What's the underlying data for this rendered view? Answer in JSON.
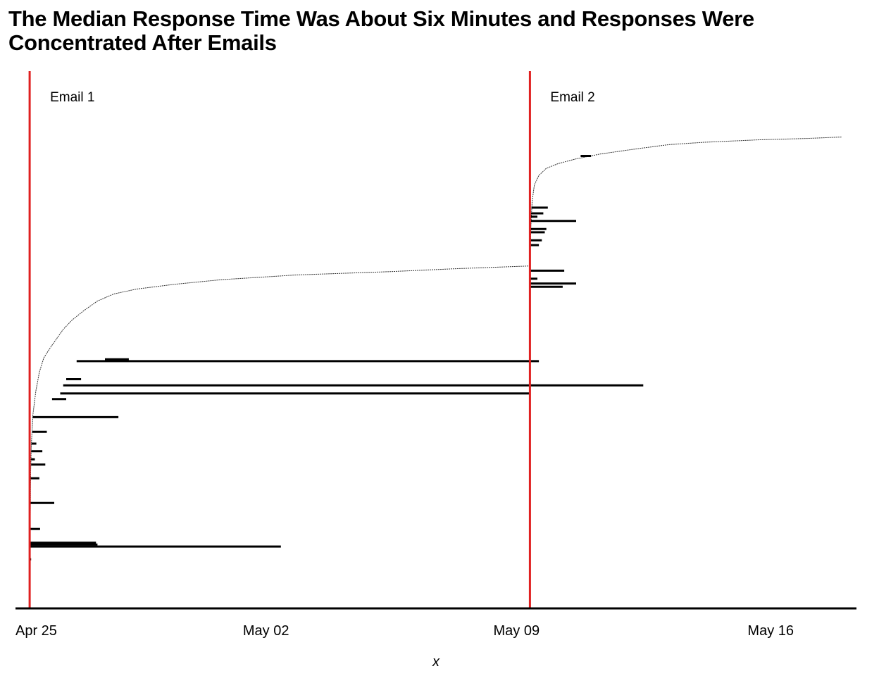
{
  "chart_data": {
    "type": "range_segments",
    "title": "The Median Response Time Was About Six Minutes and Responses Were Concentrated After Emails",
    "xlabel": "x",
    "ylabel": "",
    "x_axis": {
      "type": "date",
      "range": [
        "2024-04-25T00:00",
        "2024-05-18T12:00"
      ],
      "ticks": [
        {
          "date": "2024-04-25T00:00",
          "label": "Apr 25"
        },
        {
          "date": "2024-05-02T00:00",
          "label": "May 02"
        },
        {
          "date": "2024-05-09T00:00",
          "label": "May 09"
        },
        {
          "date": "2024-05-16T00:00",
          "label": "May 16"
        }
      ]
    },
    "y_axis": {
      "range": [
        0,
        1
      ],
      "labels_shown": false
    },
    "grid": false,
    "reference_color": "#e02020",
    "segment_color": "#000000",
    "events": [
      {
        "date": "2024-04-25T09:30",
        "label": "Email 1"
      },
      {
        "date": "2024-05-09T09:00",
        "label": "Email 2"
      }
    ],
    "cumulative_start_curve": [
      {
        "x": "2024-04-25T09:45",
        "y": 0.06
      },
      {
        "x": "2024-04-25T09:50",
        "y": 0.12
      },
      {
        "x": "2024-04-25T10:10",
        "y": 0.25
      },
      {
        "x": "2024-04-25T10:40",
        "y": 0.31
      },
      {
        "x": "2024-04-25T11:40",
        "y": 0.37
      },
      {
        "x": "2024-04-25T13:40",
        "y": 0.42
      },
      {
        "x": "2024-04-25T16:00",
        "y": 0.46
      },
      {
        "x": "2024-04-25T19:00",
        "y": 0.49
      },
      {
        "x": "2024-04-25T23:00",
        "y": 0.51
      },
      {
        "x": "2024-04-26T03:30",
        "y": 0.53
      },
      {
        "x": "2024-04-26T08:00",
        "y": 0.55
      },
      {
        "x": "2024-04-26T14:00",
        "y": 0.57
      },
      {
        "x": "2024-04-26T22:00",
        "y": 0.59
      },
      {
        "x": "2024-04-27T07:00",
        "y": 0.61
      },
      {
        "x": "2024-04-27T18:00",
        "y": 0.625
      },
      {
        "x": "2024-04-28T09:00",
        "y": 0.635
      },
      {
        "x": "2024-04-29T10:00",
        "y": 0.645
      },
      {
        "x": "2024-04-30T18:00",
        "y": 0.655
      },
      {
        "x": "2024-05-02T20:00",
        "y": 0.665
      },
      {
        "x": "2024-05-05T12:00",
        "y": 0.672
      },
      {
        "x": "2024-05-07T06:00",
        "y": 0.678
      },
      {
        "x": "2024-05-09T08:50",
        "y": 0.684
      },
      {
        "x": "2024-05-09T09:10",
        "y": 0.7
      },
      {
        "x": "2024-05-09T09:40",
        "y": 0.77
      },
      {
        "x": "2024-05-09T10:30",
        "y": 0.82
      },
      {
        "x": "2024-05-09T12:00",
        "y": 0.855
      },
      {
        "x": "2024-05-09T15:00",
        "y": 0.875
      },
      {
        "x": "2024-05-09T20:00",
        "y": 0.89
      },
      {
        "x": "2024-05-10T04:00",
        "y": 0.9
      },
      {
        "x": "2024-05-10T16:00",
        "y": 0.91
      },
      {
        "x": "2024-05-11T08:00",
        "y": 0.92
      },
      {
        "x": "2024-05-12T06:00",
        "y": 0.93
      },
      {
        "x": "2024-05-13T06:00",
        "y": 0.94
      },
      {
        "x": "2024-05-14T06:00",
        "y": 0.945
      },
      {
        "x": "2024-05-15T18:00",
        "y": 0.95
      },
      {
        "x": "2024-05-17T03:00",
        "y": 0.953
      },
      {
        "x": "2024-05-18T02:00",
        "y": 0.956
      }
    ],
    "segments": [
      {
        "y": 0.065,
        "start": "2024-04-25T09:45",
        "end": "2024-04-25T10:30"
      },
      {
        "y": 0.092,
        "start": "2024-04-25T09:45",
        "end": "2024-05-02T10:00"
      },
      {
        "y": 0.096,
        "start": "2024-04-25T09:45",
        "end": "2024-04-27T07:00"
      },
      {
        "y": 0.1,
        "start": "2024-04-25T09:45",
        "end": "2024-04-27T06:00"
      },
      {
        "y": 0.129,
        "start": "2024-04-25T09:50",
        "end": "2024-04-25T16:30"
      },
      {
        "y": 0.184,
        "start": "2024-04-25T09:50",
        "end": "2024-04-26T02:00"
      },
      {
        "y": 0.236,
        "start": "2024-04-25T10:10",
        "end": "2024-04-25T16:00"
      },
      {
        "y": 0.265,
        "start": "2024-04-25T10:30",
        "end": "2024-04-25T20:00"
      },
      {
        "y": 0.276,
        "start": "2024-04-25T10:30",
        "end": "2024-04-25T13:00"
      },
      {
        "y": 0.293,
        "start": "2024-04-25T10:35",
        "end": "2024-04-25T18:00"
      },
      {
        "y": 0.309,
        "start": "2024-04-25T10:45",
        "end": "2024-04-25T14:00"
      },
      {
        "y": 0.334,
        "start": "2024-04-25T11:20",
        "end": "2024-04-25T21:00"
      },
      {
        "y": 0.365,
        "start": "2024-04-25T11:35",
        "end": "2024-04-27T21:00"
      },
      {
        "y": 0.403,
        "start": "2024-04-26T00:30",
        "end": "2024-04-26T10:00"
      },
      {
        "y": 0.415,
        "start": "2024-04-26T06:00",
        "end": "2024-05-09T09:00"
      },
      {
        "y": 0.432,
        "start": "2024-04-26T08:00",
        "end": "2024-05-12T13:00"
      },
      {
        "y": 0.445,
        "start": "2024-04-26T10:00",
        "end": "2024-04-26T20:00"
      },
      {
        "y": 0.483,
        "start": "2024-04-26T17:00",
        "end": "2024-05-09T15:00"
      },
      {
        "y": 0.487,
        "start": "2024-04-27T12:00",
        "end": "2024-04-28T04:00"
      },
      {
        "y": 0.64,
        "start": "2024-05-09T09:00",
        "end": "2024-05-10T07:00"
      },
      {
        "y": 0.647,
        "start": "2024-05-09T09:00",
        "end": "2024-05-10T16:00"
      },
      {
        "y": 0.657,
        "start": "2024-05-09T09:05",
        "end": "2024-05-09T14:00"
      },
      {
        "y": 0.674,
        "start": "2024-05-09T09:05",
        "end": "2024-05-10T08:00"
      },
      {
        "y": 0.728,
        "start": "2024-05-09T09:10",
        "end": "2024-05-09T15:00"
      },
      {
        "y": 0.738,
        "start": "2024-05-09T09:15",
        "end": "2024-05-09T17:00"
      },
      {
        "y": 0.755,
        "start": "2024-05-09T09:25",
        "end": "2024-05-09T19:00"
      },
      {
        "y": 0.762,
        "start": "2024-05-09T09:30",
        "end": "2024-05-09T20:00"
      },
      {
        "y": 0.779,
        "start": "2024-05-09T09:40",
        "end": "2024-05-10T16:00"
      },
      {
        "y": 0.788,
        "start": "2024-05-09T09:40",
        "end": "2024-05-09T14:00"
      },
      {
        "y": 0.795,
        "start": "2024-05-09T09:45",
        "end": "2024-05-09T18:00"
      },
      {
        "y": 0.807,
        "start": "2024-05-09T10:00",
        "end": "2024-05-09T21:00"
      },
      {
        "y": 0.916,
        "start": "2024-05-10T19:00",
        "end": "2024-05-11T02:00"
      }
    ]
  }
}
